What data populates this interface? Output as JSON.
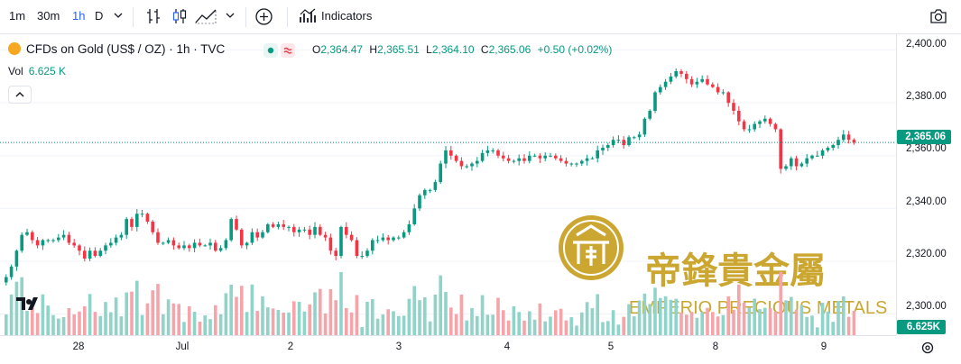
{
  "toolbar": {
    "intervals": [
      "1m",
      "30m",
      "1h",
      "D"
    ],
    "active_interval": "1h",
    "indicators_label": "Indicators"
  },
  "legend": {
    "symbol": "CFDs on Gold (US$ / OZ) · 1h · TVC",
    "o_label": "O",
    "o_value": "2,364.47",
    "h_label": "H",
    "h_value": "2,365.51",
    "l_label": "L",
    "l_value": "2,364.10",
    "c_label": "C",
    "c_value": "2,365.06",
    "change": "+0.50 (+0.02%)",
    "vol_label": "Vol",
    "vol_value": "6.625 K"
  },
  "price_axis": {
    "ticks": [
      "2,400.00",
      "2,380.00",
      "2,360.00",
      "2,340.00",
      "2,320.00",
      "2,300.00"
    ],
    "last_price": "2,365.06",
    "last_volume": "6.625K"
  },
  "time_axis": {
    "ticks": [
      "28",
      "Jul",
      "2",
      "3",
      "4",
      "5",
      "8",
      "9"
    ]
  },
  "watermark": {
    "chinese": "帝鋒貴金屬",
    "english": "EMPERIO PRECIOUS METALS"
  },
  "colors": {
    "up": "#089981",
    "down": "#f23645",
    "vol_up": "#8fd3c9",
    "vol_down": "#f5a4aa",
    "gold": "#c9a227"
  },
  "chart_data": {
    "type": "candlestick",
    "timeframe": "1h",
    "ylim": [
      2292,
      2406
    ],
    "close": [
      2314,
      2318,
      2324,
      2330,
      2331,
      2328,
      2326,
      2328,
      2328,
      2328,
      2329,
      2330,
      2327,
      2326,
      2324,
      2321,
      2324,
      2322,
      2324,
      2326,
      2327,
      2329,
      2330,
      2336,
      2333,
      2338,
      2338,
      2335,
      2331,
      2327,
      2327,
      2328,
      2326,
      2325,
      2326,
      2325,
      2327,
      2326,
      2326,
      2327,
      2324,
      2325,
      2328,
      2336,
      2332,
      2326,
      2327,
      2331,
      2329,
      2331,
      2334,
      2333,
      2334,
      2333,
      2333,
      2331,
      2332,
      2332,
      2330,
      2333,
      2330,
      2329,
      2324,
      2322,
      2333,
      2330,
      2328,
      2322,
      2322,
      2324,
      2328,
      2328,
      2329,
      2328,
      2329,
      2329,
      2331,
      2334,
      2340,
      2345,
      2347,
      2347,
      2350,
      2357,
      2362,
      2360,
      2358,
      2356,
      2356,
      2357,
      2358,
      2361,
      2362,
      2362,
      2360,
      2359,
      2358,
      2358,
      2359,
      2358,
      2360,
      2360,
      2359,
      2360,
      2360,
      2359,
      2358,
      2357,
      2357,
      2357,
      2358,
      2359,
      2359,
      2362,
      2363,
      2364,
      2366,
      2366,
      2364,
      2367,
      2367,
      2368,
      2374,
      2377,
      2384,
      2386,
      2388,
      2390,
      2392,
      2391,
      2389,
      2387,
      2388,
      2389,
      2387,
      2386,
      2384,
      2384,
      2380,
      2377,
      2373,
      2370,
      2370,
      2372,
      2373,
      2374,
      2372,
      2370,
      2355,
      2356,
      2359,
      2356,
      2357,
      2359,
      2360,
      2360,
      2362,
      2363,
      2364,
      2366,
      2368,
      2366,
      2365
    ],
    "volume_label": "Vol",
    "last_volume": 6.625
  }
}
